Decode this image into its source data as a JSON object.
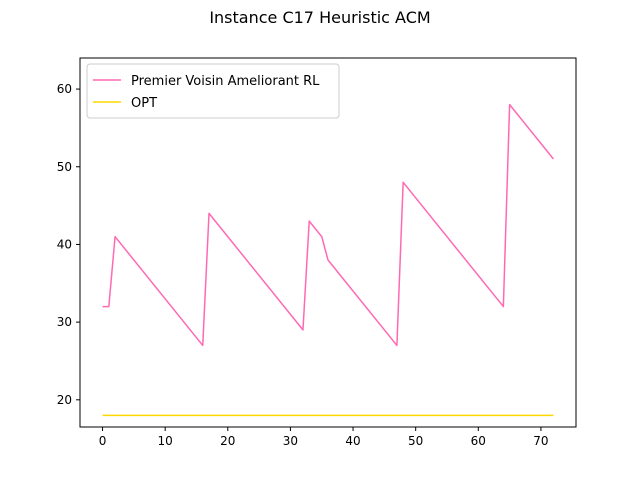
{
  "chart_data": {
    "type": "line",
    "title": "Instance C17 Heuristic ACM",
    "xlabel": "",
    "ylabel": "",
    "xlim": [
      -3.6,
      75.6
    ],
    "ylim": [
      16.5,
      64.0
    ],
    "xticks": [
      0,
      10,
      20,
      30,
      40,
      50,
      60,
      70
    ],
    "yticks": [
      20,
      30,
      40,
      50,
      60
    ],
    "grid": false,
    "legend_position": "top-left",
    "series": [
      {
        "name": "Premier Voisin Ameliorant RL",
        "color": "#ff69b4",
        "points": [
          [
            0,
            32
          ],
          [
            1,
            32
          ],
          [
            2,
            41
          ],
          [
            16,
            27
          ],
          [
            17,
            44
          ],
          [
            32,
            29
          ],
          [
            33,
            43
          ],
          [
            35,
            41
          ],
          [
            36,
            38
          ],
          [
            47,
            27
          ],
          [
            48,
            48
          ],
          [
            64,
            32
          ],
          [
            65,
            58
          ],
          [
            72,
            51
          ]
        ]
      },
      {
        "name": "OPT",
        "color": "#ffd700",
        "points": [
          [
            0,
            18
          ],
          [
            72,
            18
          ]
        ]
      }
    ]
  }
}
